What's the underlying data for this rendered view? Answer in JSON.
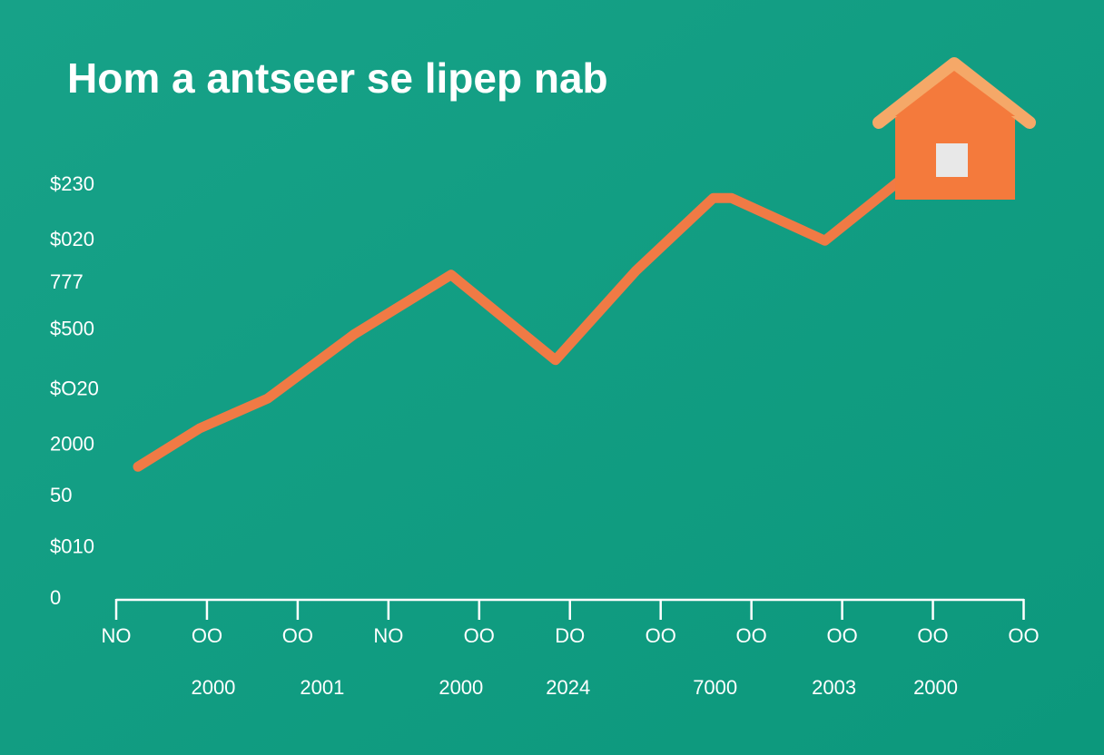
{
  "chart_data": {
    "type": "line",
    "title": "Hom a antseer se lipep nab",
    "x": [
      0.24,
      0.92,
      1.67,
      2.62,
      3.69,
      4.84,
      5.73,
      6.58,
      6.78,
      7.81,
      8.63
    ],
    "series": [
      {
        "color": "#f07a45",
        "values": [
          31,
          40,
          47,
          62,
          76,
          56,
          77,
          94,
          94,
          84,
          98
        ]
      }
    ],
    "xlim": [
      0,
      10
    ],
    "xticks": [
      {
        "value": 0,
        "label": "NO"
      },
      {
        "value": 1,
        "label": "OO"
      },
      {
        "value": 2,
        "label": "OO"
      },
      {
        "value": 3,
        "label": "NO"
      },
      {
        "value": 4,
        "label": "OO"
      },
      {
        "value": 5,
        "label": "DO"
      },
      {
        "value": 6,
        "label": "OO"
      },
      {
        "value": 7,
        "label": "OO"
      },
      {
        "value": 8,
        "label": "OO"
      },
      {
        "value": 9,
        "label": "OO"
      },
      {
        "value": 10,
        "label": "OO"
      }
    ],
    "x_sublabels": [
      {
        "value": 1.07,
        "label": "2000"
      },
      {
        "value": 2.27,
        "label": "2001"
      },
      {
        "value": 3.8,
        "label": "2000"
      },
      {
        "value": 4.98,
        "label": "2024"
      },
      {
        "value": 6.6,
        "label": "7000"
      },
      {
        "value": 7.91,
        "label": "2003"
      },
      {
        "value": 9.03,
        "label": "2000"
      }
    ],
    "ylim": [
      0,
      100
    ],
    "yticks": [
      {
        "value": 97,
        "label": "$230"
      },
      {
        "value": 84,
        "label": "$020"
      },
      {
        "value": 74,
        "label": "777"
      },
      {
        "value": 63,
        "label": "$500"
      },
      {
        "value": 49,
        "label": "$O20"
      },
      {
        "value": 36,
        "label": "2000"
      },
      {
        "value": 24,
        "label": "50"
      },
      {
        "value": 12,
        "label": "$010"
      },
      0
    ]
  }
}
